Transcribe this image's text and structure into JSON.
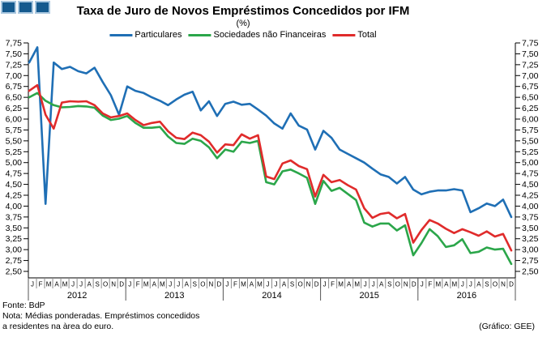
{
  "header": {
    "title": "Taxa de Juro de Novos Empréstimos Concedidos por IFM",
    "subtitle": "(%)"
  },
  "legend": [
    {
      "label": "Particulares",
      "color": "#1F6FB5"
    },
    {
      "label": "Sociedades não Financeiras",
      "color": "#2BA64A"
    },
    {
      "label": "Total",
      "color": "#E02B2B"
    }
  ],
  "logo": {
    "squares": 3,
    "fill": "#155A8E",
    "border": "#A9C7DF"
  },
  "chart_data": {
    "type": "line",
    "title": "Taxa de Juro de Novos Empréstimos Concedidos por IFM",
    "subtitle": "(%)",
    "grid": false,
    "legend_position": "top-center",
    "y_axis": {
      "min": 2.5,
      "max": 7.75,
      "step": 0.25,
      "decimal_comma": true,
      "mirrored_both_sides": true
    },
    "x_axis": {
      "month_letters": [
        "J",
        "F",
        "M",
        "A",
        "M",
        "J",
        "J",
        "A",
        "S",
        "O",
        "N",
        "D"
      ],
      "years": [
        "2012",
        "2013",
        "2014",
        "2015",
        "2016"
      ]
    },
    "series": [
      {
        "name": "Particulares",
        "color": "#1F6FB5",
        "values": [
          7.3,
          7.65,
          4.05,
          7.3,
          7.15,
          7.2,
          7.1,
          7.05,
          7.18,
          6.85,
          6.55,
          6.1,
          6.75,
          6.65,
          6.6,
          6.5,
          6.42,
          6.32,
          6.45,
          6.56,
          6.63,
          6.2,
          6.41,
          6.07,
          6.35,
          6.4,
          6.33,
          6.35,
          6.22,
          6.08,
          5.9,
          5.78,
          6.13,
          5.85,
          5.76,
          5.3,
          5.73,
          5.57,
          5.3,
          5.2,
          5.1,
          5.0,
          4.86,
          4.73,
          4.67,
          4.52,
          4.67,
          4.38,
          4.27,
          4.33,
          4.36,
          4.36,
          4.39,
          4.36,
          3.86,
          3.95,
          4.06,
          4.0,
          4.15,
          3.75
        ]
      },
      {
        "name": "Sociedades não Financeiras",
        "color": "#2BA64A",
        "values": [
          6.5,
          6.6,
          6.42,
          6.32,
          6.27,
          6.28,
          6.3,
          6.29,
          6.26,
          6.08,
          5.98,
          6.01,
          6.07,
          5.91,
          5.8,
          5.8,
          5.82,
          5.6,
          5.45,
          5.43,
          5.55,
          5.5,
          5.35,
          5.1,
          5.3,
          5.25,
          5.48,
          5.45,
          5.5,
          4.55,
          4.5,
          4.8,
          4.84,
          4.75,
          4.65,
          4.05,
          4.58,
          4.35,
          4.42,
          4.28,
          4.14,
          3.62,
          3.53,
          3.6,
          3.6,
          3.44,
          3.56,
          2.87,
          3.15,
          3.47,
          3.31,
          3.06,
          3.1,
          3.24,
          2.92,
          2.95,
          3.05,
          3.0,
          3.02,
          2.67
        ]
      },
      {
        "name": "Total",
        "color": "#E02B2B",
        "values": [
          6.65,
          6.78,
          6.1,
          5.78,
          6.38,
          6.41,
          6.4,
          6.41,
          6.32,
          6.13,
          6.04,
          6.07,
          6.13,
          5.98,
          5.86,
          5.91,
          5.94,
          5.72,
          5.57,
          5.54,
          5.69,
          5.63,
          5.48,
          5.23,
          5.42,
          5.4,
          5.65,
          5.55,
          5.63,
          4.68,
          4.62,
          4.98,
          5.05,
          4.92,
          4.85,
          4.22,
          4.72,
          4.55,
          4.6,
          4.48,
          4.38,
          3.95,
          3.73,
          3.82,
          3.85,
          3.72,
          3.82,
          3.16,
          3.45,
          3.68,
          3.6,
          3.48,
          3.38,
          3.47,
          3.4,
          3.32,
          3.42,
          3.3,
          3.36,
          2.98
        ]
      }
    ]
  },
  "footer": {
    "source": "Fonte: BdP",
    "note_line1": "Nota: Médias ponderadas. Empréstimos concedidos",
    "note_line2": "a residentes na àrea do euro.",
    "credit": "(Gráfico: GEE)"
  }
}
